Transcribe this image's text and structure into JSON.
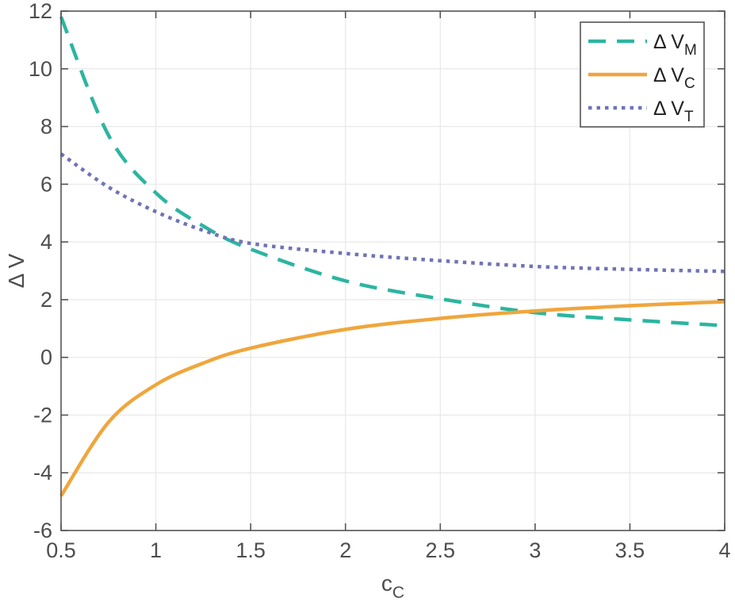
{
  "figure": {
    "background": "#ffffff",
    "axis_color": "#545454",
    "grid_color": "#e7e7e7",
    "text_color": "#4d4d4d"
  },
  "chart_data": {
    "type": "line",
    "title": "",
    "xlabel": {
      "base": "c",
      "sub": "C"
    },
    "ylabel": "Δ V",
    "xlim": [
      0.5,
      4
    ],
    "ylim": [
      -6,
      12
    ],
    "xticks": [
      0.5,
      1,
      1.5,
      2,
      2.5,
      3,
      3.5,
      4
    ],
    "yticks": [
      -6,
      -4,
      -2,
      0,
      2,
      4,
      6,
      8,
      10,
      12
    ],
    "grid": true,
    "legend_position": "top-right",
    "x": [
      0.5,
      0.75,
      1,
      1.25,
      1.5,
      2,
      2.5,
      3,
      3.5,
      4
    ],
    "series": [
      {
        "id": "vm",
        "label_base": "Δ V",
        "label_sub": "M",
        "color": "#2cb5a0",
        "style": "dashed",
        "values": [
          11.8,
          7.7,
          5.7,
          4.55,
          3.75,
          2.65,
          2.03,
          1.55,
          1.3,
          1.1
        ]
      },
      {
        "id": "vc",
        "label_base": "Δ V",
        "label_sub": "C",
        "color": "#efa63c",
        "style": "solid",
        "values": [
          -4.8,
          -2.25,
          -0.95,
          -0.2,
          0.32,
          0.97,
          1.35,
          1.61,
          1.79,
          1.93
        ]
      },
      {
        "id": "vt",
        "label_base": "Δ V",
        "label_sub": "T",
        "color": "#7173b4",
        "style": "dotted",
        "values": [
          7.05,
          5.9,
          5.05,
          4.4,
          3.95,
          3.6,
          3.35,
          3.15,
          3.05,
          2.98
        ]
      }
    ]
  }
}
